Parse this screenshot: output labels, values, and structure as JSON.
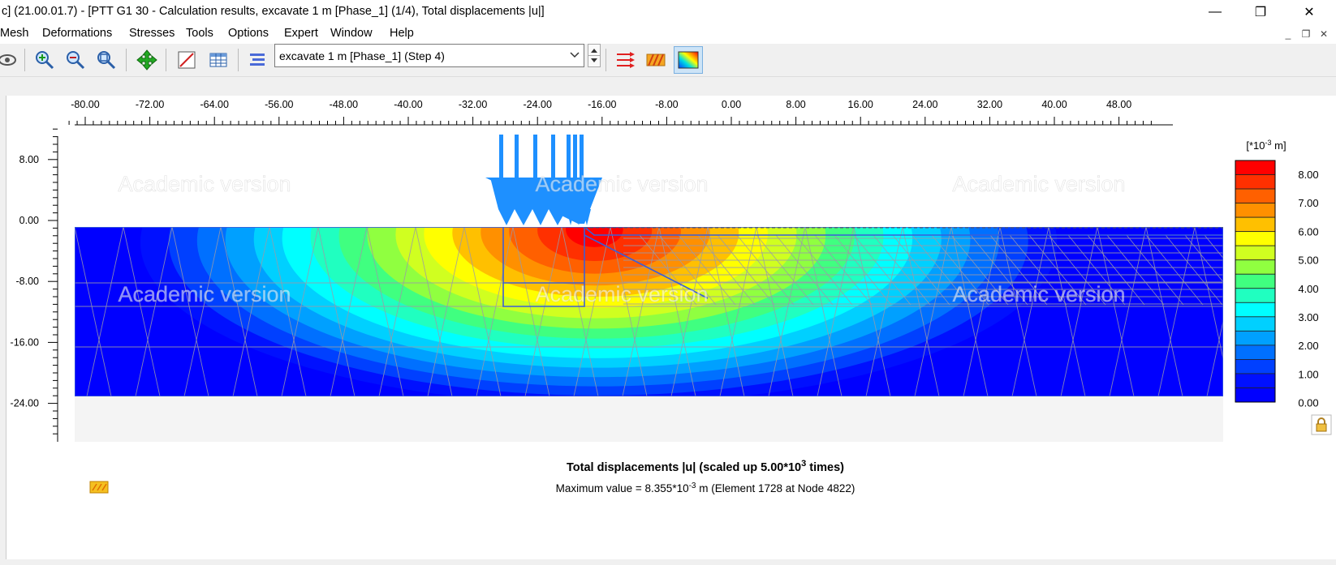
{
  "window": {
    "title": "c] (21.00.01.7) - [PTT G1 30 - Calculation results, excavate 1 m [Phase_1] (1/4), Total displacements |u|]",
    "minimize": "—",
    "maximize": "❐",
    "close": "✕"
  },
  "menu": [
    "Mesh",
    "Deformations",
    "Stresses",
    "Tools",
    "Options",
    "Expert",
    "Window",
    "Help"
  ],
  "toolbar": {
    "phase_value": "excavate 1 m [Phase_1] (Step 4)",
    "icons": [
      "eye-icon",
      "zoom-in-icon",
      "zoom-out-icon",
      "zoom-window-icon",
      "pan-icon",
      "partial-geometry-icon",
      "table-icon",
      "cross-section-icon",
      "arrows-icon",
      "shadings-icon",
      "contours-icon"
    ]
  },
  "plot": {
    "x_ticks": [
      "-80.00",
      "-72.00",
      "-64.00",
      "-56.00",
      "-48.00",
      "-40.00",
      "-32.00",
      "-24.00",
      "-16.00",
      "-8.00",
      "0.00",
      "8.00",
      "16.00",
      "24.00",
      "32.00",
      "40.00",
      "48.00"
    ],
    "y_ticks": [
      "8.00",
      "0.00",
      "-8.00",
      "-16.00",
      "-24.00"
    ],
    "watermark": "Academic version",
    "legend_unit_prefix": "[*10",
    "legend_unit_exp": "-3",
    "legend_unit_suffix": " m]",
    "legend_labels": [
      "8.00",
      "7.00",
      "6.00",
      "5.00",
      "4.00",
      "3.00",
      "2.00",
      "1.00",
      "0.00"
    ],
    "legend_colors": [
      "#ff0000",
      "#ff3000",
      "#ff6000",
      "#ff9000",
      "#ffc000",
      "#ffff00",
      "#d0ff20",
      "#90ff40",
      "#40ff80",
      "#20ffc0",
      "#00ffff",
      "#00d0ff",
      "#00a0ff",
      "#0070ff",
      "#0040ff",
      "#0010ff",
      "#0000ff"
    ],
    "caption_title_pre": "Total displacements |u| (scaled up 5.00*10",
    "caption_title_exp": "3",
    "caption_title_post": " times)",
    "caption_max_pre": "Maximum value = 8.355*10",
    "caption_max_exp": "-3",
    "caption_max_post": " m (Element 1728 at Node 4822)"
  }
}
